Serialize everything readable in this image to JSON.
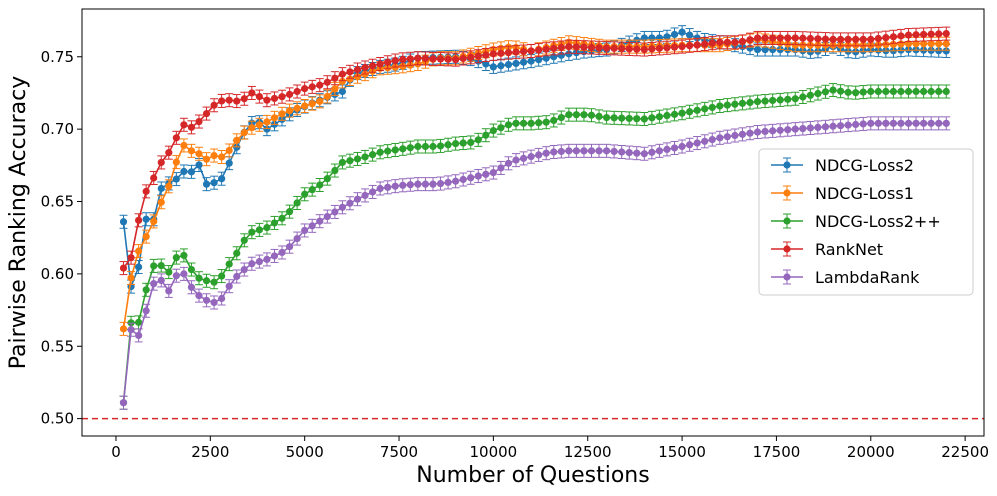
{
  "chart_data": {
    "type": "line",
    "xlabel": "Number of Questions",
    "ylabel": "Pairwise Ranking Accuracy",
    "xlim": [
      -900,
      23000
    ],
    "ylim": [
      0.488,
      0.783
    ],
    "xticks": [
      0,
      2500,
      5000,
      7500,
      10000,
      12500,
      15000,
      17500,
      20000,
      22500
    ],
    "yticks": [
      0.5,
      0.55,
      0.6,
      0.65,
      0.7,
      0.75
    ],
    "xtick_labels": [
      "0",
      "2500",
      "5000",
      "7500",
      "10000",
      "12500",
      "15000",
      "17500",
      "20000",
      "22500"
    ],
    "ytick_labels": [
      "0.50",
      "0.55",
      "0.60",
      "0.65",
      "0.70",
      "0.75"
    ],
    "grid": false,
    "legend_position": "center-right",
    "reference_line": {
      "y": 0.5,
      "color": "#d62728",
      "style": "dashed"
    },
    "series": [
      {
        "name": "NDCG-Loss2",
        "color": "#1f77b4",
        "error": 0.0045,
        "anchors": [
          [
            200,
            0.636
          ],
          [
            450,
            0.58
          ],
          [
            650,
            0.613
          ],
          [
            850,
            0.646
          ],
          [
            1050,
            0.635
          ],
          [
            1250,
            0.667
          ],
          [
            1450,
            0.661
          ],
          [
            1650,
            0.667
          ],
          [
            1850,
            0.672
          ],
          [
            2050,
            0.67
          ],
          [
            2250,
            0.677
          ],
          [
            2450,
            0.657
          ],
          [
            2650,
            0.665
          ],
          [
            2850,
            0.666
          ],
          [
            3050,
            0.68
          ],
          [
            3250,
            0.69
          ],
          [
            3500,
            0.703
          ],
          [
            3750,
            0.706
          ],
          [
            4000,
            0.7
          ],
          [
            4300,
            0.705
          ],
          [
            4700,
            0.712
          ],
          [
            5200,
            0.718
          ],
          [
            5700,
            0.723
          ],
          [
            6000,
            0.726
          ],
          [
            6300,
            0.738
          ],
          [
            7000,
            0.743
          ],
          [
            7500,
            0.745
          ],
          [
            8000,
            0.749
          ],
          [
            9000,
            0.75
          ],
          [
            9500,
            0.748
          ],
          [
            10000,
            0.743
          ],
          [
            10500,
            0.745
          ],
          [
            11000,
            0.747
          ],
          [
            12000,
            0.752
          ],
          [
            12500,
            0.754
          ],
          [
            13000,
            0.755
          ],
          [
            14000,
            0.763
          ],
          [
            14500,
            0.763
          ],
          [
            15000,
            0.767
          ],
          [
            15500,
            0.762
          ],
          [
            16000,
            0.76
          ],
          [
            17000,
            0.755
          ],
          [
            18000,
            0.755
          ],
          [
            18500,
            0.753
          ],
          [
            19000,
            0.757
          ],
          [
            19500,
            0.753
          ],
          [
            20000,
            0.755
          ],
          [
            20500,
            0.754
          ],
          [
            21000,
            0.755
          ],
          [
            22000,
            0.754
          ]
        ]
      },
      {
        "name": "NDCG-Loss1",
        "color": "#ff7f0e",
        "error": 0.0045,
        "anchors": [
          [
            200,
            0.562
          ],
          [
            450,
            0.606
          ],
          [
            650,
            0.619
          ],
          [
            850,
            0.628
          ],
          [
            1050,
            0.639
          ],
          [
            1250,
            0.653
          ],
          [
            1450,
            0.663
          ],
          [
            1650,
            0.682
          ],
          [
            1850,
            0.691
          ],
          [
            2050,
            0.683
          ],
          [
            2250,
            0.683
          ],
          [
            2450,
            0.678
          ],
          [
            2650,
            0.683
          ],
          [
            2850,
            0.68
          ],
          [
            3050,
            0.687
          ],
          [
            3250,
            0.694
          ],
          [
            3500,
            0.7
          ],
          [
            4000,
            0.705
          ],
          [
            4500,
            0.712
          ],
          [
            5000,
            0.716
          ],
          [
            5500,
            0.72
          ],
          [
            6000,
            0.733
          ],
          [
            6500,
            0.737
          ],
          [
            7000,
            0.742
          ],
          [
            7500,
            0.743
          ],
          [
            8000,
            0.745
          ],
          [
            8500,
            0.749
          ],
          [
            9000,
            0.749
          ],
          [
            9500,
            0.752
          ],
          [
            10000,
            0.755
          ],
          [
            10500,
            0.757
          ],
          [
            11000,
            0.754
          ],
          [
            11500,
            0.757
          ],
          [
            12000,
            0.76
          ],
          [
            13000,
            0.757
          ],
          [
            14000,
            0.757
          ],
          [
            15000,
            0.758
          ],
          [
            16000,
            0.758
          ],
          [
            17000,
            0.762
          ],
          [
            18000,
            0.758
          ],
          [
            19000,
            0.758
          ],
          [
            20000,
            0.758
          ],
          [
            21000,
            0.759
          ],
          [
            22000,
            0.759
          ]
        ]
      },
      {
        "name": "NDCG-Loss2++",
        "color": "#2ca02c",
        "error": 0.0045,
        "anchors": [
          [
            200,
            0.511
          ],
          [
            450,
            0.58
          ],
          [
            650,
            0.562
          ],
          [
            850,
            0.598
          ],
          [
            1050,
            0.608
          ],
          [
            1250,
            0.605
          ],
          [
            1450,
            0.6
          ],
          [
            1650,
            0.615
          ],
          [
            1850,
            0.612
          ],
          [
            2050,
            0.6
          ],
          [
            2250,
            0.596
          ],
          [
            2450,
            0.595
          ],
          [
            2650,
            0.594
          ],
          [
            2850,
            0.6
          ],
          [
            3050,
            0.609
          ],
          [
            3250,
            0.616
          ],
          [
            3500,
            0.628
          ],
          [
            4000,
            0.632
          ],
          [
            4500,
            0.64
          ],
          [
            5000,
            0.655
          ],
          [
            5500,
            0.663
          ],
          [
            6000,
            0.677
          ],
          [
            6500,
            0.68
          ],
          [
            7000,
            0.684
          ],
          [
            7500,
            0.686
          ],
          [
            8000,
            0.688
          ],
          [
            8500,
            0.688
          ],
          [
            9000,
            0.69
          ],
          [
            9500,
            0.691
          ],
          [
            10000,
            0.699
          ],
          [
            10500,
            0.704
          ],
          [
            11000,
            0.704
          ],
          [
            11500,
            0.705
          ],
          [
            12000,
            0.71
          ],
          [
            12500,
            0.71
          ],
          [
            13000,
            0.708
          ],
          [
            14000,
            0.707
          ],
          [
            15000,
            0.711
          ],
          [
            16000,
            0.716
          ],
          [
            17000,
            0.719
          ],
          [
            18000,
            0.721
          ],
          [
            18500,
            0.724
          ],
          [
            19000,
            0.727
          ],
          [
            19500,
            0.725
          ],
          [
            20000,
            0.726
          ],
          [
            21000,
            0.726
          ],
          [
            22000,
            0.726
          ]
        ]
      },
      {
        "name": "RankNet",
        "color": "#d62728",
        "error": 0.0045,
        "anchors": [
          [
            200,
            0.604
          ],
          [
            450,
            0.613
          ],
          [
            650,
            0.645
          ],
          [
            850,
            0.661
          ],
          [
            1050,
            0.668
          ],
          [
            1250,
            0.68
          ],
          [
            1450,
            0.685
          ],
          [
            1650,
            0.697
          ],
          [
            1850,
            0.705
          ],
          [
            2050,
            0.7
          ],
          [
            2250,
            0.707
          ],
          [
            2450,
            0.712
          ],
          [
            2650,
            0.718
          ],
          [
            2850,
            0.72
          ],
          [
            3050,
            0.72
          ],
          [
            3300,
            0.719
          ],
          [
            3600,
            0.725
          ],
          [
            4000,
            0.72
          ],
          [
            4500,
            0.723
          ],
          [
            5000,
            0.728
          ],
          [
            5500,
            0.731
          ],
          [
            6000,
            0.738
          ],
          [
            6500,
            0.742
          ],
          [
            7000,
            0.745
          ],
          [
            7500,
            0.748
          ],
          [
            8000,
            0.749
          ],
          [
            9000,
            0.748
          ],
          [
            10000,
            0.752
          ],
          [
            11000,
            0.754
          ],
          [
            12000,
            0.757
          ],
          [
            13000,
            0.756
          ],
          [
            14000,
            0.755
          ],
          [
            15000,
            0.757
          ],
          [
            16000,
            0.76
          ],
          [
            16500,
            0.76
          ],
          [
            17000,
            0.763
          ],
          [
            18000,
            0.763
          ],
          [
            19000,
            0.762
          ],
          [
            20000,
            0.762
          ],
          [
            21000,
            0.765
          ],
          [
            22000,
            0.766
          ]
        ]
      },
      {
        "name": "LambdaRank",
        "color": "#9467bd",
        "error": 0.0045,
        "anchors": [
          [
            200,
            0.511
          ],
          [
            450,
            0.574
          ],
          [
            650,
            0.552
          ],
          [
            850,
            0.582
          ],
          [
            1050,
            0.597
          ],
          [
            1250,
            0.595
          ],
          [
            1450,
            0.586
          ],
          [
            1650,
            0.603
          ],
          [
            1850,
            0.599
          ],
          [
            2050,
            0.588
          ],
          [
            2250,
            0.584
          ],
          [
            2450,
            0.581
          ],
          [
            2650,
            0.58
          ],
          [
            2850,
            0.584
          ],
          [
            3050,
            0.594
          ],
          [
            3300,
            0.601
          ],
          [
            3600,
            0.607
          ],
          [
            4000,
            0.61
          ],
          [
            4500,
            0.616
          ],
          [
            5000,
            0.63
          ],
          [
            5500,
            0.638
          ],
          [
            6000,
            0.646
          ],
          [
            6500,
            0.653
          ],
          [
            7000,
            0.659
          ],
          [
            7500,
            0.661
          ],
          [
            8000,
            0.662
          ],
          [
            8500,
            0.662
          ],
          [
            9000,
            0.664
          ],
          [
            9500,
            0.667
          ],
          [
            10000,
            0.67
          ],
          [
            10500,
            0.678
          ],
          [
            11000,
            0.681
          ],
          [
            11500,
            0.684
          ],
          [
            12000,
            0.685
          ],
          [
            12500,
            0.685
          ],
          [
            13000,
            0.685
          ],
          [
            14000,
            0.683
          ],
          [
            15000,
            0.688
          ],
          [
            16000,
            0.694
          ],
          [
            17000,
            0.698
          ],
          [
            18000,
            0.7
          ],
          [
            19000,
            0.702
          ],
          [
            20000,
            0.704
          ],
          [
            21000,
            0.704
          ],
          [
            22000,
            0.704
          ]
        ]
      }
    ]
  }
}
